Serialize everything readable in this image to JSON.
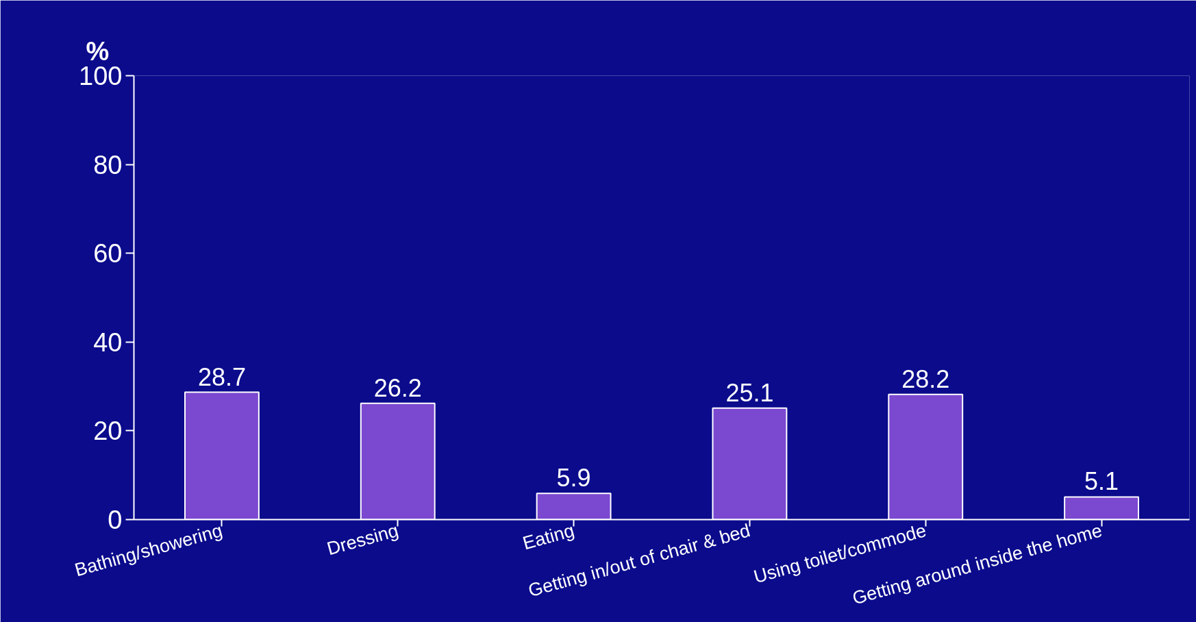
{
  "chart_data": {
    "type": "bar",
    "ylabel": "%",
    "categories": [
      "Bathing/showering",
      "Dressing",
      "Eating",
      "Getting in/out of chair & bed",
      "Using toilet/commode",
      "Getting around inside the home"
    ],
    "values": [
      28.7,
      26.2,
      5.9,
      25.1,
      28.2,
      5.1
    ],
    "color": "#7b48d0",
    "ylim": [
      0,
      100
    ],
    "yticks": [
      0,
      20,
      40,
      60,
      80,
      100
    ],
    "data_labels": true,
    "grid": false
  }
}
